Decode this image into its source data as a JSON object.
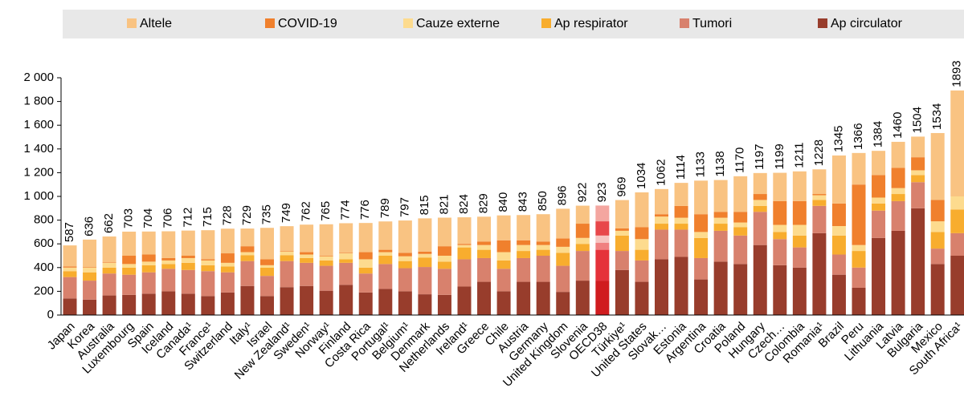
{
  "chart_data": {
    "type": "stacked_bar",
    "categories": [
      "Japan",
      "Korea",
      "Australia",
      "Luxembourg",
      "Spain",
      "Iceland",
      "Canada¹",
      "France¹",
      "Switzerland",
      "Italy¹",
      "Israel",
      "New Zealand¹",
      "Sweden¹",
      "Norway¹",
      "Finland",
      "Costa Rica",
      "Portugal¹",
      "Belgium¹",
      "Denmark",
      "Netherlands",
      "Ireland¹",
      "Greece",
      "Chile",
      "Austria",
      "Germany",
      "United Kingdom",
      "Slovenia",
      "OECD38",
      "Türkiye¹",
      "United States",
      "Slovak…",
      "Estonia",
      "Argentina",
      "Croatia",
      "Poland",
      "Hungary",
      "Czech…",
      "Colombia",
      "Romania¹",
      "Brazil",
      "Peru",
      "Lithuania",
      "Latvia",
      "Bulgaria",
      "Mexico",
      "South Africa¹"
    ],
    "totals": [
      587,
      636,
      662,
      703,
      704,
      706,
      712,
      715,
      728,
      729,
      735,
      749,
      762,
      765,
      774,
      776,
      789,
      797,
      815,
      821,
      824,
      829,
      840,
      843,
      850,
      896,
      922,
      923,
      969,
      1034,
      1062,
      1114,
      1133,
      1138,
      1170,
      1197,
      1199,
      1211,
      1228,
      1345,
      1366,
      1384,
      1460,
      1504,
      1534,
      1893
    ],
    "series": [
      {
        "name": "Altele",
        "color": "#f9c382",
        "values": [
          177,
          231,
          217,
          203,
          194,
          226,
          212,
          245,
          208,
          149,
          265,
          209,
          232,
          265,
          249,
          246,
          239,
          272,
          280,
          241,
          224,
          209,
          210,
          213,
          230,
          251,
          152,
          133,
          239,
          294,
          212,
          194,
          283,
          268,
          300,
          177,
          239,
          251,
          208,
          405,
          266,
          204,
          220,
          174,
          564,
          893
        ]
      },
      {
        "name": "COVID-19",
        "color": "#f0802d",
        "values": [
          10,
          5,
          5,
          70,
          60,
          20,
          20,
          10,
          80,
          50,
          50,
          5,
          20,
          5,
          5,
          60,
          20,
          30,
          20,
          80,
          10,
          30,
          100,
          40,
          30,
          70,
          120,
          120,
          20,
          100,
          20,
          100,
          150,
          50,
          90,
          50,
          200,
          200,
          10,
          190,
          510,
          190,
          170,
          110,
          180,
          0
        ]
      },
      {
        "name": "Cauze externe",
        "color": "#fddb8e",
        "values": [
          30,
          40,
          40,
          30,
          30,
          30,
          40,
          40,
          30,
          25,
          20,
          30,
          30,
          35,
          50,
          70,
          30,
          40,
          30,
          50,
          20,
          40,
          70,
          50,
          40,
          50,
          50,
          60,
          40,
          90,
          60,
          50,
          50,
          50,
          40,
          50,
          60,
          90,
          40,
          80,
          50,
          50,
          50,
          40,
          90,
          110
        ]
      },
      {
        "name": "Ap respirator",
        "color": "#f8ad2e",
        "values": [
          50,
          70,
          50,
          60,
          60,
          40,
          60,
          50,
          50,
          50,
          70,
          50,
          40,
          45,
          30,
          50,
          70,
          60,
          80,
          60,
          100,
          70,
          70,
          60,
          50,
          110,
          60,
          60,
          130,
          90,
          50,
          50,
          170,
          60,
          70,
          50,
          60,
          100,
          50,
          160,
          140,
          60,
          60,
          60,
          140,
          200
        ]
      },
      {
        "name": "Tumori",
        "color": "#d8816d",
        "values": [
          180,
          160,
          185,
          170,
          180,
          190,
          200,
          210,
          170,
          210,
          170,
          220,
          195,
          210,
          185,
          160,
          210,
          195,
          230,
          220,
          230,
          200,
          190,
          200,
          220,
          220,
          250,
          260,
          160,
          180,
          250,
          230,
          180,
          260,
          240,
          280,
          220,
          170,
          230,
          170,
          170,
          230,
          250,
          220,
          130,
          190
        ]
      },
      {
        "name": "Ap circulator",
        "color": "#983d2c",
        "values": [
          140,
          130,
          165,
          170,
          180,
          200,
          180,
          160,
          190,
          245,
          160,
          235,
          245,
          205,
          255,
          190,
          220,
          200,
          175,
          170,
          240,
          280,
          200,
          280,
          280,
          195,
          290,
          290,
          380,
          280,
          470,
          490,
          300,
          450,
          430,
          590,
          420,
          400,
          690,
          340,
          230,
          650,
          710,
          900,
          430,
          500
        ]
      }
    ],
    "highlight_index": 27,
    "highlight_colors": [
      "#f4a6a0",
      "#e8474a",
      "#f7c4c0",
      "#f08080",
      "#e5323a",
      "#d01c1f"
    ],
    "ylim": [
      0,
      2000
    ],
    "yticks": [
      0,
      200,
      400,
      600,
      800,
      {
        "value": 1000,
        "label": "1 000"
      },
      {
        "value": 1200,
        "label": "1 200"
      },
      {
        "value": 1400,
        "label": "1 400"
      },
      {
        "value": 1600,
        "label": "1 600"
      },
      {
        "value": 1800,
        "label": "1 800"
      },
      {
        "value": 2000,
        "label": "2 000"
      }
    ]
  }
}
